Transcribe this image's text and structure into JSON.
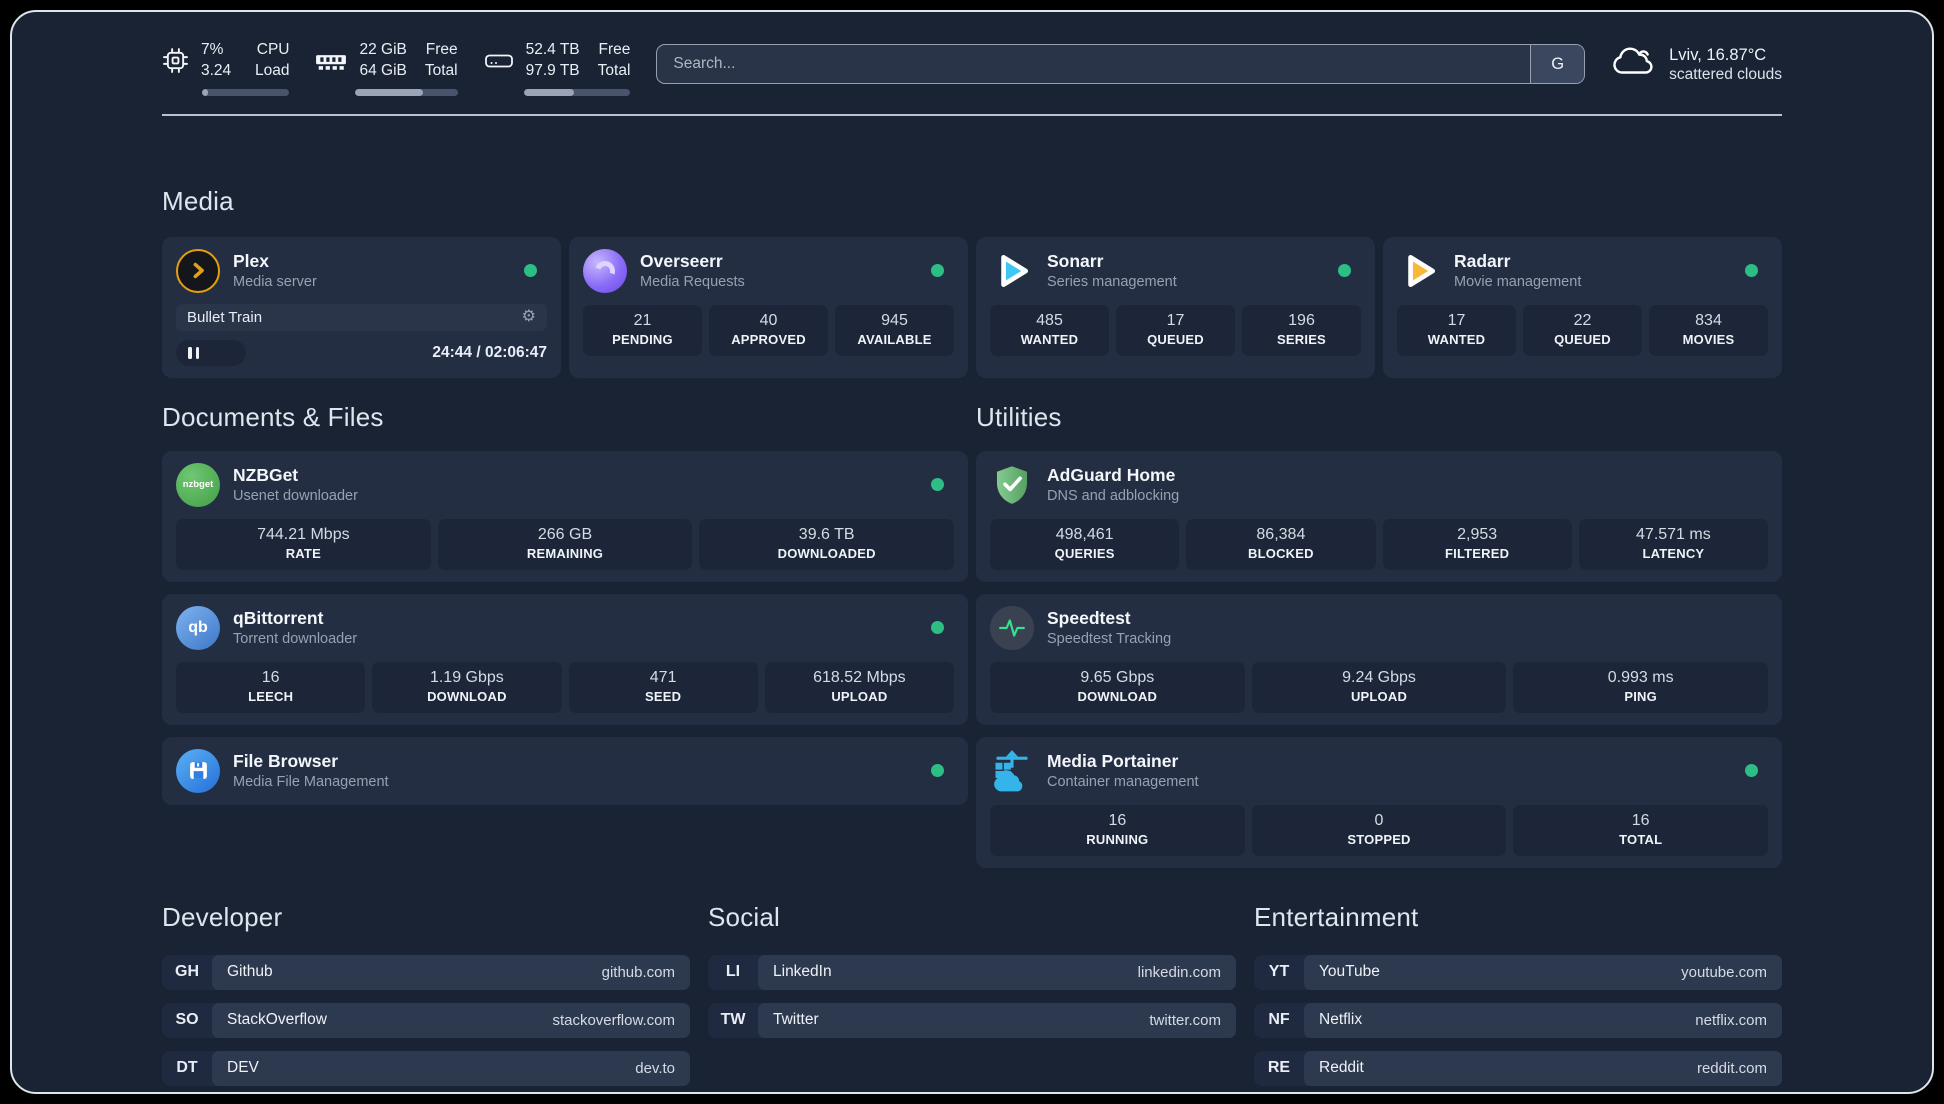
{
  "colors": {
    "status_online": "#2dbe85",
    "plex_accent": "#e5a00d",
    "sonarr_accent": "#3fc8f4",
    "radarr_accent": "#f8b93a",
    "portainer_accent": "#35b4ea",
    "adguard_accent": "#6cb97a",
    "speedtest_accent": "#35e08e"
  },
  "header": {
    "stats": [
      {
        "icon": "cpu-icon",
        "values": [
          "7%",
          "3.24"
        ],
        "labels": [
          "CPU",
          "Load"
        ],
        "progress": 7
      },
      {
        "icon": "memory-icon",
        "values": [
          "22 GiB",
          "64 GiB"
        ],
        "labels": [
          "Free",
          "Total"
        ],
        "progress": 66
      },
      {
        "icon": "storage-icon",
        "values": [
          "52.4 TB",
          "97.9 TB"
        ],
        "labels": [
          "Free",
          "Total"
        ],
        "progress": 47
      }
    ],
    "search": {
      "placeholder": "Search...",
      "button_label": "G"
    },
    "weather": {
      "location": "Lviv, 16.87°C",
      "condition": "scattered clouds"
    }
  },
  "media": {
    "title": "Media",
    "plex": {
      "title": "Plex",
      "subtitle": "Media server",
      "now_playing": "Bullet Train",
      "time": "24:44 / 02:06:47"
    },
    "overseerr": {
      "title": "Overseerr",
      "subtitle": "Media Requests",
      "stats": [
        {
          "value": "21",
          "label": "PENDING"
        },
        {
          "value": "40",
          "label": "APPROVED"
        },
        {
          "value": "945",
          "label": "AVAILABLE"
        }
      ]
    },
    "sonarr": {
      "title": "Sonarr",
      "subtitle": "Series management",
      "stats": [
        {
          "value": "485",
          "label": "WANTED"
        },
        {
          "value": "17",
          "label": "QUEUED"
        },
        {
          "value": "196",
          "label": "SERIES"
        }
      ]
    },
    "radarr": {
      "title": "Radarr",
      "subtitle": "Movie management",
      "stats": [
        {
          "value": "17",
          "label": "WANTED"
        },
        {
          "value": "22",
          "label": "QUEUED"
        },
        {
          "value": "834",
          "label": "MOVIES"
        }
      ]
    }
  },
  "documents": {
    "title": "Documents & Files",
    "nzbget": {
      "title": "NZBGet",
      "subtitle": "Usenet downloader",
      "icon_label": "nzbget",
      "stats": [
        {
          "value": "744.21 Mbps",
          "label": "RATE"
        },
        {
          "value": "266 GB",
          "label": "REMAINING"
        },
        {
          "value": "39.6 TB",
          "label": "DOWNLOADED"
        }
      ]
    },
    "qbittorrent": {
      "title": "qBittorrent",
      "subtitle": "Torrent downloader",
      "icon_label": "qb",
      "stats": [
        {
          "value": "16",
          "label": "LEECH"
        },
        {
          "value": "1.19 Gbps",
          "label": "DOWNLOAD"
        },
        {
          "value": "471",
          "label": "SEED"
        },
        {
          "value": "618.52 Mbps",
          "label": "UPLOAD"
        }
      ]
    },
    "filebrowser": {
      "title": "File Browser",
      "subtitle": "Media File Management"
    }
  },
  "utilities": {
    "title": "Utilities",
    "adguard": {
      "title": "AdGuard Home",
      "subtitle": "DNS and adblocking",
      "stats": [
        {
          "value": "498,461",
          "label": "QUERIES"
        },
        {
          "value": "86,384",
          "label": "BLOCKED"
        },
        {
          "value": "2,953",
          "label": "FILTERED"
        },
        {
          "value": "47.571 ms",
          "label": "LATENCY"
        }
      ]
    },
    "speedtest": {
      "title": "Speedtest",
      "subtitle": "Speedtest Tracking",
      "stats": [
        {
          "value": "9.65 Gbps",
          "label": "DOWNLOAD"
        },
        {
          "value": "9.24 Gbps",
          "label": "UPLOAD"
        },
        {
          "value": "0.993 ms",
          "label": "PING"
        }
      ]
    },
    "portainer": {
      "title": "Media Portainer",
      "subtitle": "Container management",
      "stats": [
        {
          "value": "16",
          "label": "RUNNING"
        },
        {
          "value": "0",
          "label": "STOPPED"
        },
        {
          "value": "16",
          "label": "TOTAL"
        }
      ]
    }
  },
  "links": {
    "developer": {
      "title": "Developer",
      "items": [
        {
          "abbr": "GH",
          "name": "Github",
          "url": "github.com"
        },
        {
          "abbr": "SO",
          "name": "StackOverflow",
          "url": "stackoverflow.com"
        },
        {
          "abbr": "DT",
          "name": "DEV",
          "url": "dev.to"
        }
      ]
    },
    "social": {
      "title": "Social",
      "items": [
        {
          "abbr": "LI",
          "name": "LinkedIn",
          "url": "linkedin.com"
        },
        {
          "abbr": "TW",
          "name": "Twitter",
          "url": "twitter.com"
        }
      ]
    },
    "entertainment": {
      "title": "Entertainment",
      "items": [
        {
          "abbr": "YT",
          "name": "YouTube",
          "url": "youtube.com"
        },
        {
          "abbr": "NF",
          "name": "Netflix",
          "url": "netflix.com"
        },
        {
          "abbr": "RE",
          "name": "Reddit",
          "url": "reddit.com"
        }
      ]
    }
  }
}
